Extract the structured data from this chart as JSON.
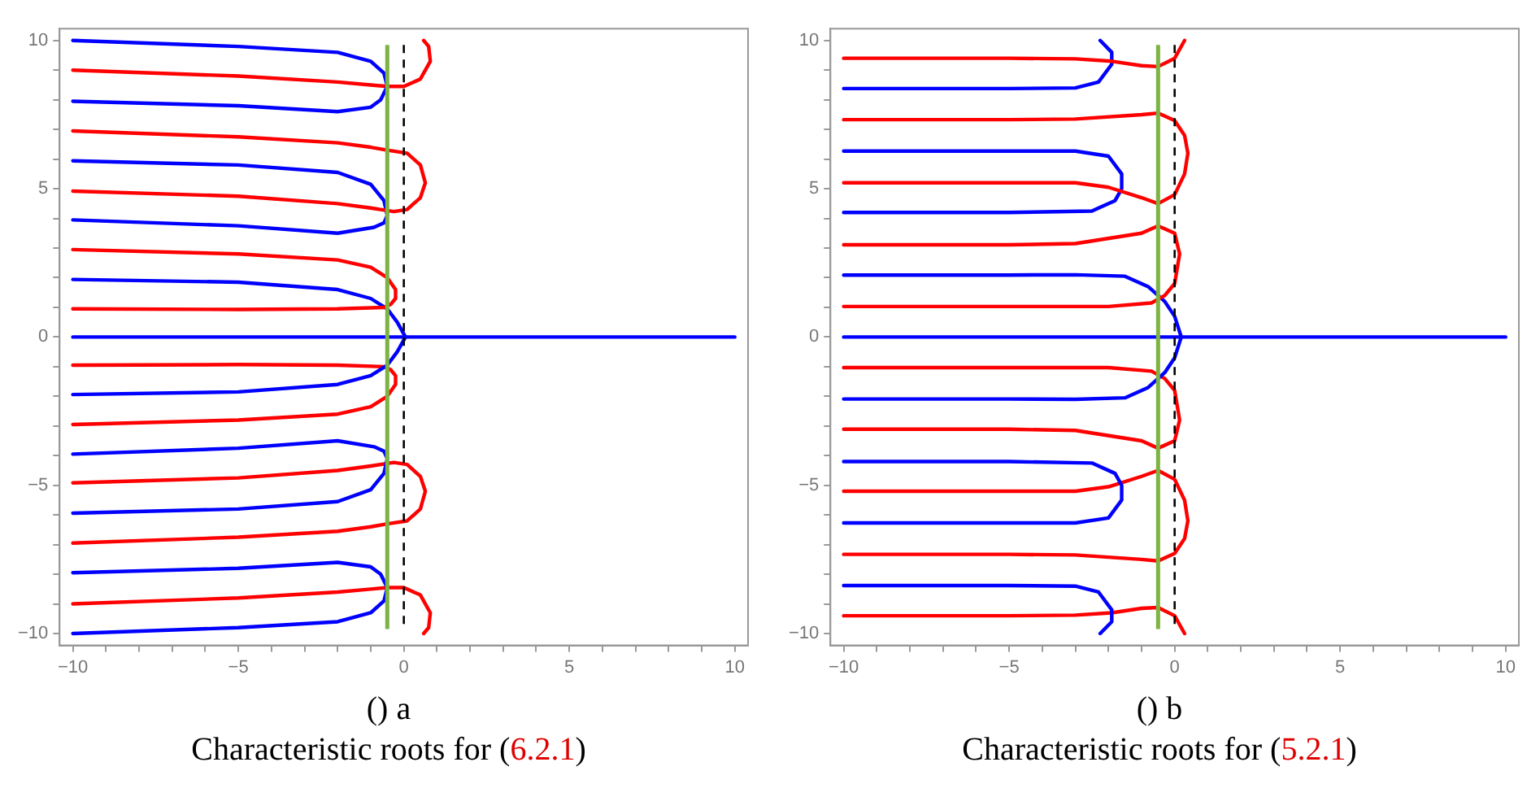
{
  "chart_data": [
    {
      "type": "line",
      "xlim": [
        -10.4,
        10.4
      ],
      "ylim": [
        -10.4,
        10.4
      ],
      "xticks": [
        -10,
        {
          "value": -9,
          "label": null
        },
        {
          "value": -8,
          "label": null
        },
        {
          "value": -7,
          "label": null
        },
        {
          "value": -6,
          "label": null
        },
        -5,
        {
          "value": -4,
          "label": null
        },
        {
          "value": -3,
          "label": null
        },
        {
          "value": -2,
          "label": null
        },
        {
          "value": -1,
          "label": null
        },
        0,
        {
          "value": 1,
          "label": null
        },
        {
          "value": 2,
          "label": null
        },
        {
          "value": 3,
          "label": null
        },
        {
          "value": 4,
          "label": null
        },
        5,
        {
          "value": 6,
          "label": null
        },
        {
          "value": 7,
          "label": null
        },
        {
          "value": 8,
          "label": null
        },
        {
          "value": 9,
          "label": null
        },
        10
      ],
      "yticks": [
        -10,
        {
          "value": -9,
          "label": null
        },
        {
          "value": -8,
          "label": null
        },
        {
          "value": -7,
          "label": null
        },
        {
          "value": -6,
          "label": null
        },
        -5,
        {
          "value": -4,
          "label": null
        },
        {
          "value": -3,
          "label": null
        },
        {
          "value": -2,
          "label": null
        },
        {
          "value": -1,
          "label": null
        },
        0,
        {
          "value": 1,
          "label": null
        },
        {
          "value": 2,
          "label": null
        },
        {
          "value": 3,
          "label": null
        },
        {
          "value": 4,
          "label": null
        },
        5,
        {
          "value": 6,
          "label": null
        },
        {
          "value": 7,
          "label": null
        },
        {
          "value": 8,
          "label": null
        },
        {
          "value": 9,
          "label": null
        },
        10
      ],
      "grid": false,
      "ref_lines": [
        {
          "axis": "x",
          "value": -0.5,
          "color": "#7cb342",
          "line_style": "solid"
        },
        {
          "axis": "x",
          "value": 0,
          "color": "#000000",
          "line_style": "dashed"
        }
      ],
      "annotations": [
        "() a",
        "Characteristic roots for (6.2.1)"
      ],
      "series": [
        {
          "color": "#0000ff",
          "x": [
            -10,
            10
          ],
          "values": [
            0,
            0
          ]
        },
        {
          "color": "#0000ff",
          "x": [
            -10,
            -5,
            -2,
            -1,
            -0.6,
            -0.5,
            -0.7,
            -1,
            -2,
            -5,
            -10
          ],
          "values": [
            10,
            9.8,
            9.6,
            9.3,
            8.9,
            8.45,
            8.0,
            7.75,
            7.6,
            7.8,
            7.95
          ]
        },
        {
          "color": "#ff0000",
          "x": [
            -10,
            -5,
            -2,
            -1,
            -0.5,
            0,
            0.5,
            0.8,
            0.75,
            0.6
          ],
          "values": [
            9,
            8.8,
            8.6,
            8.5,
            8.45,
            8.45,
            8.7,
            9.3,
            9.8,
            10
          ]
        },
        {
          "color": "#ff0000",
          "x": [
            -10,
            -5,
            -2,
            -1,
            -0.5,
            0.1,
            0.5,
            0.65,
            0.5,
            0.1,
            -0.3,
            -1,
            -2,
            -5,
            -10
          ],
          "values": [
            6.95,
            6.75,
            6.55,
            6.4,
            6.3,
            6.2,
            5.8,
            5.2,
            4.7,
            4.3,
            4.23,
            4.35,
            4.5,
            4.75,
            4.92
          ]
        },
        {
          "color": "#0000ff",
          "x": [
            -10,
            -5,
            -2,
            -1,
            -0.6,
            -0.5,
            -0.6,
            -0.9,
            -2,
            -5,
            -10
          ],
          "values": [
            5.94,
            5.8,
            5.55,
            5.15,
            4.6,
            4.1,
            3.85,
            3.7,
            3.5,
            3.75,
            3.95
          ]
        },
        {
          "color": "#ff0000",
          "x": [
            -10,
            -5,
            -2,
            -1,
            -0.5,
            -0.25,
            -0.25,
            -0.4,
            -0.6,
            -2,
            -5,
            -10
          ],
          "values": [
            2.95,
            2.8,
            2.6,
            2.35,
            2.0,
            1.6,
            1.3,
            1.1,
            1.0,
            0.95,
            0.93,
            0.95
          ]
        },
        {
          "color": "#0000ff",
          "x": [
            -10,
            -5,
            -2,
            -1,
            -0.5,
            -0.2,
            0.05,
            -0.2,
            -0.5,
            -1,
            -2,
            -5,
            -10
          ],
          "values": [
            1.94,
            1.85,
            1.6,
            1.3,
            0.95,
            0.5,
            0,
            -0.5,
            -0.95,
            -1.3,
            -1.6,
            -1.85,
            -1.94
          ]
        },
        {
          "color": "#ff0000",
          "x": [
            -10,
            -5,
            -2,
            -1,
            -0.5,
            -0.25,
            -0.25,
            -0.4,
            -0.6,
            -2,
            -5,
            -10
          ],
          "values": [
            -2.95,
            -2.8,
            -2.6,
            -2.35,
            -2.0,
            -1.6,
            -1.3,
            -1.1,
            -1.0,
            -0.95,
            -0.93,
            -0.95
          ]
        },
        {
          "color": "#0000ff",
          "x": [
            -10,
            -5,
            -2,
            -1,
            -0.6,
            -0.5,
            -0.6,
            -0.9,
            -2,
            -5,
            -10
          ],
          "values": [
            -5.94,
            -5.8,
            -5.55,
            -5.15,
            -4.6,
            -4.1,
            -3.85,
            -3.7,
            -3.5,
            -3.75,
            -3.95
          ]
        },
        {
          "color": "#ff0000",
          "x": [
            -10,
            -5,
            -2,
            -1,
            -0.5,
            0.1,
            0.5,
            0.65,
            0.5,
            0.1,
            -0.3,
            -1,
            -2,
            -5,
            -10
          ],
          "values": [
            -6.95,
            -6.75,
            -6.55,
            -6.4,
            -6.3,
            -6.2,
            -5.8,
            -5.2,
            -4.7,
            -4.3,
            -4.23,
            -4.35,
            -4.5,
            -4.75,
            -4.92
          ]
        },
        {
          "color": "#0000ff",
          "x": [
            -10,
            -5,
            -2,
            -1,
            -0.6,
            -0.5,
            -0.7,
            -1,
            -2,
            -5,
            -10
          ],
          "values": [
            -10,
            -9.8,
            -9.6,
            -9.3,
            -8.9,
            -8.45,
            -8.0,
            -7.75,
            -7.6,
            -7.8,
            -7.95
          ]
        },
        {
          "color": "#ff0000",
          "x": [
            -10,
            -5,
            -2,
            -1,
            -0.5,
            0,
            0.5,
            0.8,
            0.75,
            0.6
          ],
          "values": [
            -9,
            -8.8,
            -8.6,
            -8.5,
            -8.45,
            -8.45,
            -8.7,
            -9.3,
            -9.8,
            -10
          ]
        }
      ]
    },
    {
      "type": "line",
      "xlim": [
        -10.4,
        10.4
      ],
      "ylim": [
        -10.4,
        10.4
      ],
      "xticks": [
        -10,
        {
          "value": -9,
          "label": null
        },
        {
          "value": -8,
          "label": null
        },
        {
          "value": -7,
          "label": null
        },
        {
          "value": -6,
          "label": null
        },
        -5,
        {
          "value": -4,
          "label": null
        },
        {
          "value": -3,
          "label": null
        },
        {
          "value": -2,
          "label": null
        },
        {
          "value": -1,
          "label": null
        },
        0,
        {
          "value": 1,
          "label": null
        },
        {
          "value": 2,
          "label": null
        },
        {
          "value": 3,
          "label": null
        },
        {
          "value": 4,
          "label": null
        },
        5,
        {
          "value": 6,
          "label": null
        },
        {
          "value": 7,
          "label": null
        },
        {
          "value": 8,
          "label": null
        },
        {
          "value": 9,
          "label": null
        },
        10
      ],
      "yticks": [
        -10,
        {
          "value": -9,
          "label": null
        },
        {
          "value": -8,
          "label": null
        },
        {
          "value": -7,
          "label": null
        },
        {
          "value": -6,
          "label": null
        },
        -5,
        {
          "value": -4,
          "label": null
        },
        {
          "value": -3,
          "label": null
        },
        {
          "value": -2,
          "label": null
        },
        {
          "value": -1,
          "label": null
        },
        0,
        {
          "value": 1,
          "label": null
        },
        {
          "value": 2,
          "label": null
        },
        {
          "value": 3,
          "label": null
        },
        {
          "value": 4,
          "label": null
        },
        5,
        {
          "value": 6,
          "label": null
        },
        {
          "value": 7,
          "label": null
        },
        {
          "value": 8,
          "label": null
        },
        {
          "value": 9,
          "label": null
        },
        10
      ],
      "grid": false,
      "ref_lines": [
        {
          "axis": "x",
          "value": -0.5,
          "color": "#7cb342",
          "line_style": "solid"
        },
        {
          "axis": "x",
          "value": 0,
          "color": "#000000",
          "line_style": "dashed"
        }
      ],
      "annotations": [
        "() b",
        "Characteristic roots for (5.2.1)"
      ],
      "series": [
        {
          "color": "#0000ff",
          "x": [
            -10,
            10
          ],
          "values": [
            0,
            0
          ]
        },
        {
          "color": "#ff0000",
          "x": [
            -10,
            -5,
            -3,
            -1.9,
            -1,
            -0.5,
            0,
            0.3
          ],
          "values": [
            9.4,
            9.4,
            9.38,
            9.3,
            9.15,
            9.12,
            9.4,
            10
          ]
        },
        {
          "color": "#0000ff",
          "x": [
            -2.25,
            -1.9,
            -1.9,
            -2.3,
            -3,
            -5,
            -10
          ],
          "values": [
            10,
            9.6,
            9.2,
            8.6,
            8.4,
            8.38,
            8.38
          ]
        },
        {
          "color": "#ff0000",
          "x": [
            -10,
            -5,
            -3,
            -1,
            -0.5,
            0,
            0.3,
            0.4,
            0.3,
            0,
            -0.5,
            -1,
            -2,
            -3,
            -5,
            -10
          ],
          "values": [
            7.33,
            7.33,
            7.35,
            7.5,
            7.55,
            7.3,
            6.8,
            6.2,
            5.5,
            4.8,
            4.5,
            4.7,
            5.05,
            5.2,
            5.2,
            5.2
          ]
        },
        {
          "color": "#0000ff",
          "x": [
            -10,
            -5,
            -3,
            -2,
            -1.6,
            -1.6,
            -1.8,
            -2.5,
            -5,
            -10
          ],
          "values": [
            6.27,
            6.27,
            6.27,
            6.1,
            5.5,
            5.0,
            4.6,
            4.25,
            4.2,
            4.2
          ]
        },
        {
          "color": "#ff0000",
          "x": [
            -10,
            -5,
            -3,
            -1,
            -0.5,
            0,
            0.15,
            0,
            -0.3,
            -0.7,
            -2,
            -5,
            -10
          ],
          "values": [
            3.11,
            3.11,
            3.15,
            3.5,
            3.75,
            3.5,
            2.8,
            1.8,
            1.4,
            1.15,
            1.03,
            1.03,
            1.03
          ]
        },
        {
          "color": "#0000ff",
          "x": [
            -10,
            -5,
            -3,
            -1.5,
            -0.8,
            -0.3,
            0,
            0.2,
            0,
            -0.3,
            -0.8,
            -1.5,
            -3,
            -5,
            -10
          ],
          "values": [
            2.09,
            2.09,
            2.1,
            2.05,
            1.7,
            1.2,
            0.7,
            0,
            -0.7,
            -1.2,
            -1.7,
            -2.05,
            -2.1,
            -2.09,
            -2.09
          ]
        },
        {
          "color": "#ff0000",
          "x": [
            -10,
            -5,
            -3,
            -1,
            -0.5,
            0,
            0.15,
            0,
            -0.3,
            -0.7,
            -2,
            -5,
            -10
          ],
          "values": [
            -3.11,
            -3.11,
            -3.15,
            -3.5,
            -3.75,
            -3.5,
            -2.8,
            -1.8,
            -1.4,
            -1.15,
            -1.03,
            -1.03,
            -1.03
          ]
        },
        {
          "color": "#0000ff",
          "x": [
            -10,
            -5,
            -3,
            -2,
            -1.6,
            -1.6,
            -1.8,
            -2.5,
            -5,
            -10
          ],
          "values": [
            -6.27,
            -6.27,
            -6.27,
            -6.1,
            -5.5,
            -5.0,
            -4.6,
            -4.25,
            -4.2,
            -4.2
          ]
        },
        {
          "color": "#ff0000",
          "x": [
            -10,
            -5,
            -3,
            -1,
            -0.5,
            0,
            0.3,
            0.4,
            0.3,
            0,
            -0.5,
            -1,
            -2,
            -3,
            -5,
            -10
          ],
          "values": [
            -7.33,
            -7.33,
            -7.35,
            -7.5,
            -7.55,
            -7.3,
            -6.8,
            -6.2,
            -5.5,
            -4.8,
            -4.5,
            -4.7,
            -5.05,
            -5.2,
            -5.2,
            -5.2
          ]
        },
        {
          "color": "#0000ff",
          "x": [
            -2.25,
            -1.9,
            -1.9,
            -2.3,
            -3,
            -5,
            -10
          ],
          "values": [
            -10,
            -9.6,
            -9.2,
            -8.6,
            -8.4,
            -8.38,
            -8.38
          ]
        },
        {
          "color": "#ff0000",
          "x": [
            -10,
            -5,
            -3,
            -1.9,
            -1,
            -0.5,
            0,
            0.3
          ],
          "values": [
            -9.4,
            -9.4,
            -9.38,
            -9.3,
            -9.15,
            -9.12,
            -9.4,
            -10
          ]
        }
      ]
    }
  ]
}
